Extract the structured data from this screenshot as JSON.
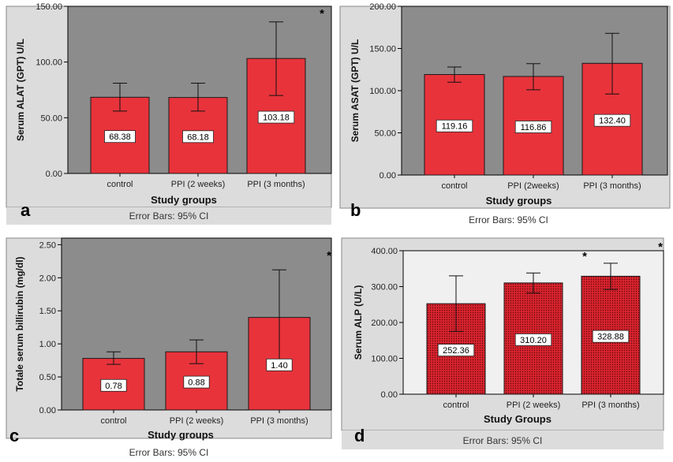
{
  "chart_data": [
    {
      "panel_label": "a",
      "type": "bar",
      "ylabel": "Serum ALAT (GPT) U/L",
      "xlabel": "Study groups",
      "categories": [
        "control",
        "PPI (2 weeks)",
        "PPI (3 months)"
      ],
      "values": [
        68.38,
        68.18,
        103.18
      ],
      "value_labels": [
        "68.38",
        "68.18",
        "103.18"
      ],
      "ci_low": [
        56,
        56,
        70
      ],
      "ci_high": [
        81,
        81,
        136
      ],
      "ylim": [
        0,
        150
      ],
      "yticks": [
        0,
        50,
        100,
        150
      ],
      "ytick_labels": [
        "0.00",
        "50.00",
        "100.00",
        "150.00"
      ],
      "annotations": [
        "*"
      ],
      "footer": "Error Bars: 95% CI",
      "plot_bg": "#8c8c8c",
      "bar_color": "#e8333b",
      "bar_pattern": "solid"
    },
    {
      "panel_label": "b",
      "type": "bar",
      "ylabel": "Serum ASAT (GPT) U/L",
      "xlabel": "Study groups",
      "categories": [
        "control",
        "PPI (2weeks)",
        "PPI (3 months)"
      ],
      "values": [
        119.16,
        116.86,
        132.4
      ],
      "value_labels": [
        "119.16",
        "116.86",
        "132.40"
      ],
      "ci_low": [
        110,
        101,
        96
      ],
      "ci_high": [
        128,
        132,
        168
      ],
      "ylim": [
        0,
        200
      ],
      "yticks": [
        0,
        50,
        100,
        150,
        200
      ],
      "ytick_labels": [
        "0.00",
        "50.00",
        "100.00",
        "150.00",
        "200.00"
      ],
      "annotations": [],
      "footer": "Error Bars: 95% CI",
      "plot_bg": "#8c8c8c",
      "bar_color": "#e8333b",
      "bar_pattern": "solid"
    },
    {
      "panel_label": "c",
      "type": "bar",
      "ylabel": "Totale serum billirubin (mg/dl)",
      "xlabel": "Study groups",
      "categories": [
        "control",
        "PPI (2 weeks)",
        "PPI (3 months)"
      ],
      "values": [
        0.78,
        0.88,
        1.4
      ],
      "value_labels": [
        "0.78",
        "0.88",
        "1.40"
      ],
      "ci_low": [
        0.69,
        0.7,
        0.68
      ],
      "ci_high": [
        0.88,
        1.06,
        2.12
      ],
      "ylim": [
        0,
        2.6
      ],
      "yticks": [
        0,
        0.5,
        1,
        1.5,
        2,
        2.5
      ],
      "ytick_labels": [
        "0.00",
        "0.50",
        "1.00",
        "1.50",
        "2.00",
        "2.50"
      ],
      "annotations": [
        "*"
      ],
      "footer": "Error Bars: 95% CI",
      "plot_bg": "#8c8c8c",
      "bar_color": "#e8333b",
      "bar_pattern": "solid"
    },
    {
      "panel_label": "d",
      "type": "bar",
      "ylabel": "Serum ALP (U/L)",
      "xlabel": "Study Groups",
      "categories": [
        "control",
        "PPI (2 weeks)",
        "PPI (3 months)"
      ],
      "values": [
        252.36,
        310.2,
        328.88
      ],
      "value_labels": [
        "252.36",
        "310.20",
        "328.88"
      ],
      "ci_low": [
        175,
        282,
        292
      ],
      "ci_high": [
        330,
        338,
        365
      ],
      "ylim": [
        0,
        400
      ],
      "yticks": [
        0,
        100,
        200,
        300,
        400
      ],
      "ytick_labels": [
        "0.00",
        "100.00",
        "200.00",
        "300.00",
        "400.00"
      ],
      "annotations": [
        "*",
        "*"
      ],
      "footer": "Error Bars: 95% CI",
      "plot_bg": "#f0f0f0",
      "bar_color": "#d9232d",
      "bar_pattern": "dotted"
    }
  ]
}
